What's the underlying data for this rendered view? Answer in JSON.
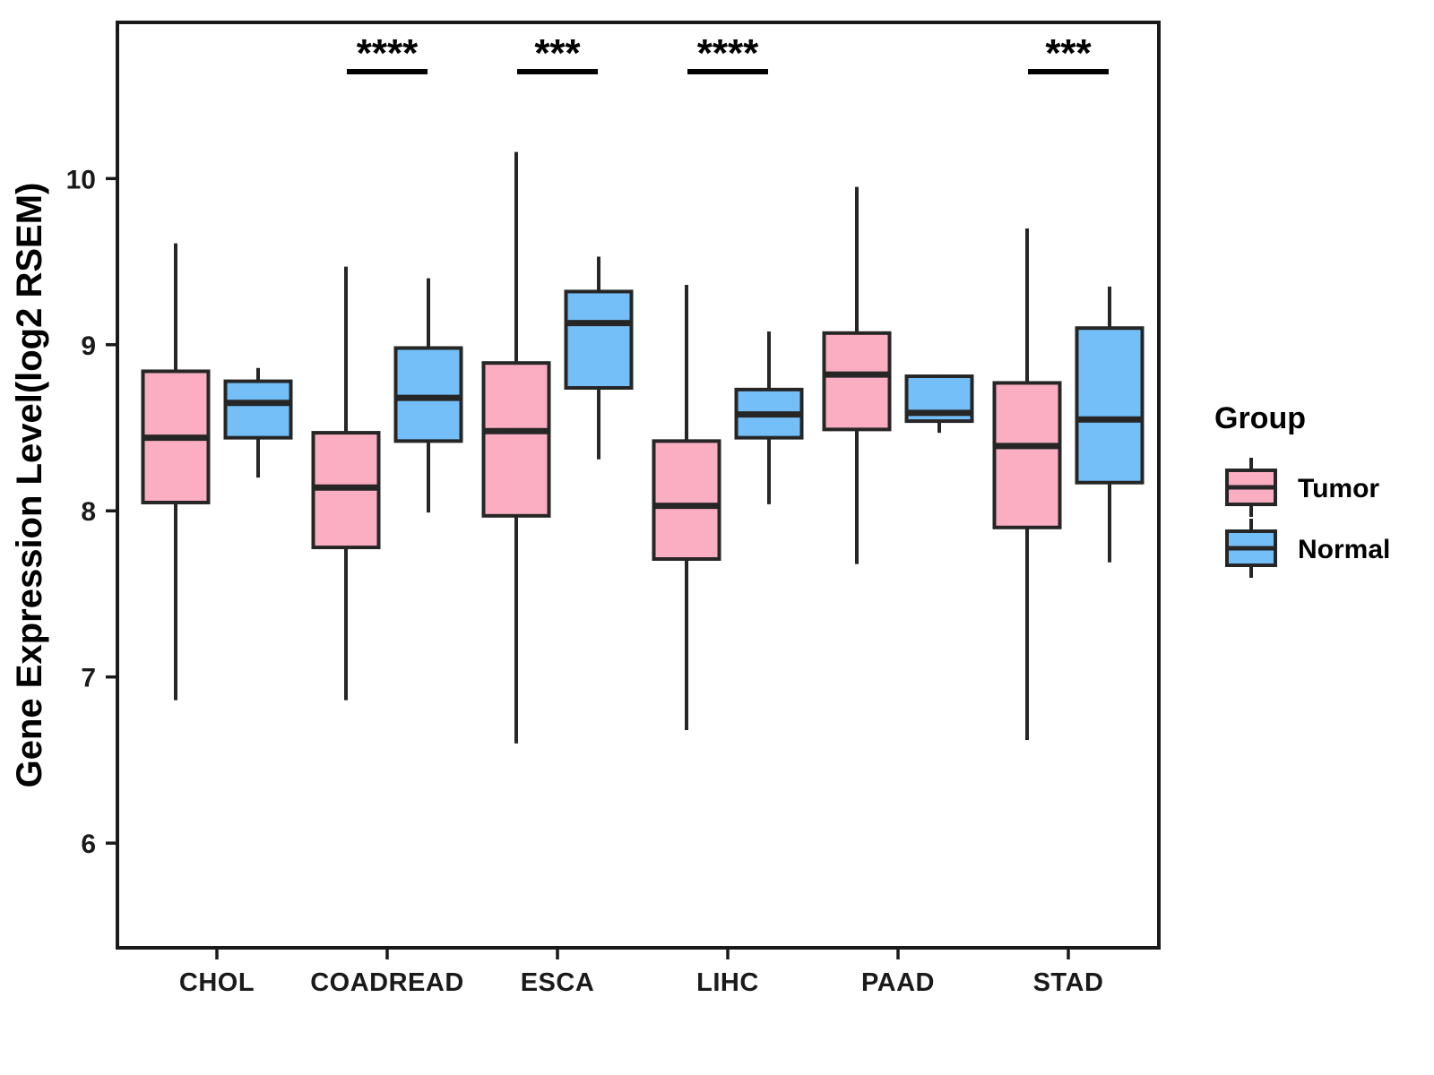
{
  "chart_data": {
    "type": "boxplot",
    "title": "",
    "xlabel": "",
    "ylabel": "Gene Expression Level(log2 RSEM)",
    "categories": [
      "CHOL",
      "COADREAD",
      "ESCA",
      "LIHC",
      "PAAD",
      "STAD"
    ],
    "yticks": [
      "6",
      "7",
      "8",
      "9",
      "10"
    ],
    "ylim": [
      5.37,
      10.94
    ],
    "grid": "off",
    "legend": {
      "title": "Group",
      "position": "right",
      "entries": [
        {
          "name": "Tumor",
          "color": "#FBAEC1"
        },
        {
          "name": "Normal",
          "color": "#74BFF8"
        }
      ]
    },
    "significance": [
      {
        "category": "COADREAD",
        "label": "****"
      },
      {
        "category": "ESCA",
        "label": "***"
      },
      {
        "category": "LIHC",
        "label": "****"
      },
      {
        "category": "STAD",
        "label": "***"
      }
    ],
    "series": [
      {
        "name": "Tumor",
        "color": "#FBAEC1",
        "boxes": [
          {
            "category": "CHOL",
            "min": 6.86,
            "q1": 8.05,
            "median": 8.44,
            "q3": 8.84,
            "max": 9.61
          },
          {
            "category": "COADREAD",
            "min": 6.86,
            "q1": 7.78,
            "median": 8.14,
            "q3": 8.47,
            "max": 9.47
          },
          {
            "category": "ESCA",
            "min": 6.6,
            "q1": 7.97,
            "median": 8.48,
            "q3": 8.89,
            "max": 10.16
          },
          {
            "category": "LIHC",
            "min": 6.68,
            "q1": 7.71,
            "median": 8.03,
            "q3": 8.42,
            "max": 9.36
          },
          {
            "category": "PAAD",
            "min": 7.68,
            "q1": 8.49,
            "median": 8.82,
            "q3": 9.07,
            "max": 9.95
          },
          {
            "category": "STAD",
            "min": 6.62,
            "q1": 7.9,
            "median": 8.39,
            "q3": 8.77,
            "max": 9.7
          }
        ]
      },
      {
        "name": "Normal",
        "color": "#74BFF8",
        "boxes": [
          {
            "category": "CHOL",
            "min": 8.2,
            "q1": 8.44,
            "median": 8.65,
            "q3": 8.78,
            "max": 8.86
          },
          {
            "category": "COADREAD",
            "min": 7.99,
            "q1": 8.42,
            "median": 8.68,
            "q3": 8.98,
            "max": 9.4
          },
          {
            "category": "ESCA",
            "min": 8.31,
            "q1": 8.74,
            "median": 9.13,
            "q3": 9.32,
            "max": 9.53
          },
          {
            "category": "LIHC",
            "min": 8.04,
            "q1": 8.44,
            "median": 8.58,
            "q3": 8.73,
            "max": 9.08
          },
          {
            "category": "PAAD",
            "min": 8.47,
            "q1": 8.54,
            "median": 8.59,
            "q3": 8.81,
            "max": 8.82
          },
          {
            "category": "STAD",
            "min": 7.69,
            "q1": 8.17,
            "median": 8.55,
            "q3": 9.1,
            "max": 9.35
          }
        ]
      }
    ],
    "colors": {
      "box_stroke": "#262626",
      "axis": "#1a1a1a",
      "annotation": "#000000",
      "background": "#ffffff"
    }
  }
}
